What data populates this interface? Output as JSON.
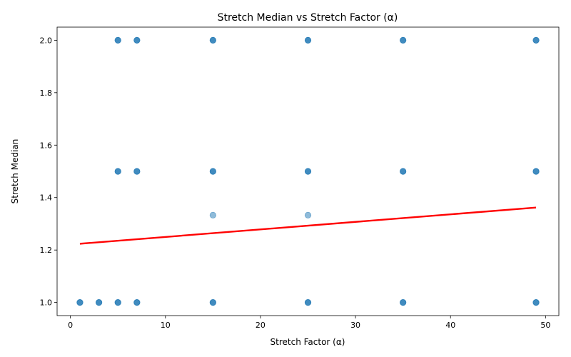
{
  "chart_data": {
    "type": "scatter",
    "title": "Stretch Median vs Stretch Factor (α)",
    "xlabel": "Stretch Factor (α)",
    "ylabel": "Stretch Median",
    "xlim": [
      -1.4,
      51.4
    ],
    "ylim": [
      0.95,
      2.05
    ],
    "xticks": [
      0,
      10,
      20,
      30,
      40,
      50
    ],
    "yticks": [
      1.0,
      1.2,
      1.4,
      1.6,
      1.8,
      2.0
    ],
    "xtick_labels": [
      "0",
      "10",
      "20",
      "30",
      "40",
      "50"
    ],
    "ytick_labels": [
      "1.0",
      "1.2",
      "1.4",
      "1.6",
      "1.8",
      "2.0"
    ],
    "grid": false,
    "point_color": "#1f77b4",
    "line_color": "#ff0000",
    "points": [
      {
        "x": 1,
        "y": 1.0
      },
      {
        "x": 3,
        "y": 1.0
      },
      {
        "x": 5,
        "y": 1.0
      },
      {
        "x": 5,
        "y": 1.5
      },
      {
        "x": 5,
        "y": 2.0
      },
      {
        "x": 7,
        "y": 1.0
      },
      {
        "x": 7,
        "y": 1.5
      },
      {
        "x": 7,
        "y": 2.0
      },
      {
        "x": 15,
        "y": 1.0
      },
      {
        "x": 15,
        "y": 1.333
      },
      {
        "x": 15,
        "y": 1.5
      },
      {
        "x": 15,
        "y": 2.0
      },
      {
        "x": 25,
        "y": 1.0
      },
      {
        "x": 25,
        "y": 1.333
      },
      {
        "x": 25,
        "y": 1.5
      },
      {
        "x": 25,
        "y": 2.0
      },
      {
        "x": 35,
        "y": 1.0
      },
      {
        "x": 35,
        "y": 1.5
      },
      {
        "x": 35,
        "y": 2.0
      },
      {
        "x": 49,
        "y": 1.0
      },
      {
        "x": 49,
        "y": 1.5
      },
      {
        "x": 49,
        "y": 2.0
      }
    ],
    "trend_line": {
      "x": [
        1,
        49
      ],
      "y": [
        1.224,
        1.362
      ]
    }
  }
}
